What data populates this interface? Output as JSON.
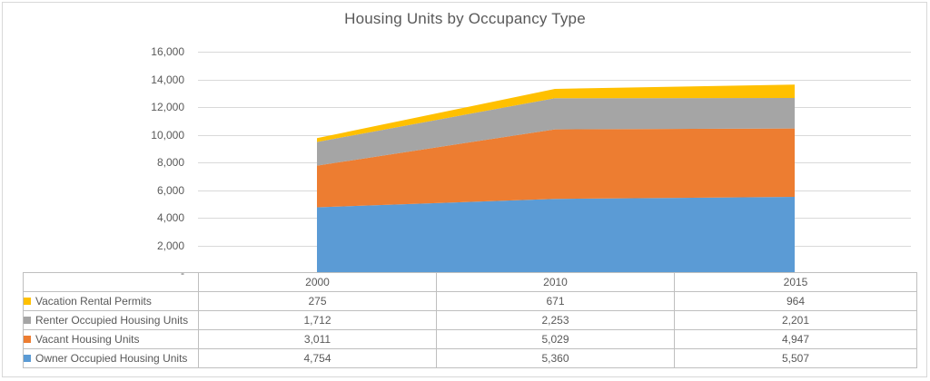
{
  "chart_data": {
    "type": "area",
    "stacked": true,
    "title": "Housing Units by Occupancy Type",
    "categories": [
      "2000",
      "2010",
      "2015"
    ],
    "series": [
      {
        "name": "Owner Occupied Housing Units",
        "color": "#5B9BD5",
        "values": [
          4754,
          5360,
          5507
        ]
      },
      {
        "name": "Vacant Housing Units",
        "color": "#ED7D31",
        "values": [
          3011,
          5029,
          4947
        ]
      },
      {
        "name": "Renter Occupied Housing Units",
        "color": "#A5A5A5",
        "values": [
          1712,
          2253,
          2201
        ]
      },
      {
        "name": "Vacation Rental Permits",
        "color": "#FFC000",
        "values": [
          275,
          671,
          964
        ]
      }
    ],
    "xlabel": "",
    "ylabel": "",
    "ylim": [
      0,
      16000
    ],
    "ytick_interval": 2000,
    "ytick_labels_top_down": [
      "16,000",
      "14,000",
      "12,000",
      "10,000",
      "8,000",
      "6,000",
      "4,000",
      "2,000",
      "-"
    ],
    "grid": true,
    "legend_position": "left-column-of-data-table"
  },
  "data_table": {
    "year_columns": [
      "2000",
      "2010",
      "2015"
    ],
    "rows": [
      {
        "label": "Vacation Rental Permits",
        "key_color": "#FFC000",
        "values": [
          "275",
          "671",
          "964"
        ]
      },
      {
        "label": "Renter Occupied Housing Units",
        "key_color": "#A5A5A5",
        "values": [
          "1,712",
          "2,253",
          "2,201"
        ]
      },
      {
        "label": "Vacant Housing Units",
        "key_color": "#ED7D31",
        "values": [
          "3,011",
          "5,029",
          "4,947"
        ]
      },
      {
        "label": "Owner Occupied Housing Units",
        "key_color": "#5B9BD5",
        "values": [
          "4,754",
          "5,360",
          "5,507"
        ]
      }
    ]
  },
  "colors": {
    "gridline": "#D9D9D9",
    "table_border": "#BFBFBF",
    "text": "#595959",
    "frame": "#D8D8D8"
  }
}
